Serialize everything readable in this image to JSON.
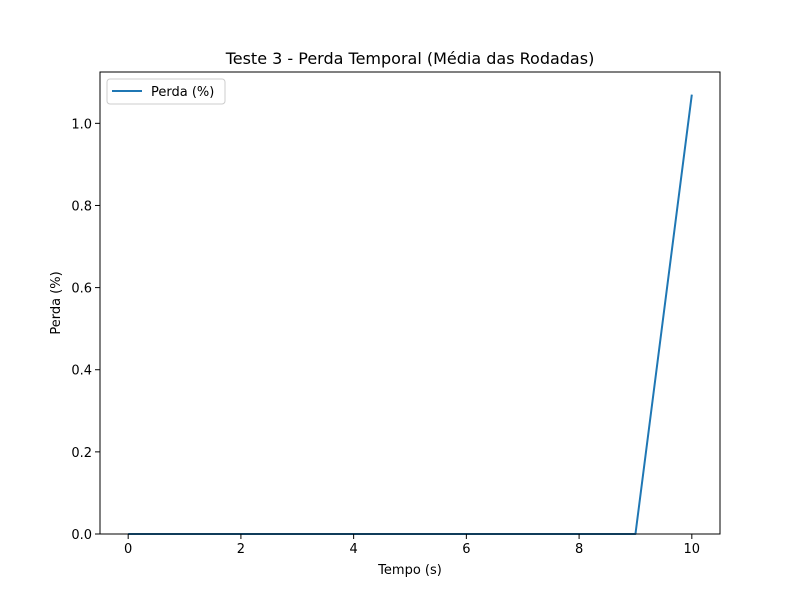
{
  "chart_data": {
    "type": "line",
    "title": "Teste 3 - Perda Temporal (Média das Rodadas)",
    "xlabel": "Tempo (s)",
    "ylabel": "Perda (%)",
    "xlim": [
      -0.5,
      10.5
    ],
    "ylim": [
      0.0,
      1.125
    ],
    "xticks": [
      0,
      2,
      4,
      6,
      8,
      10
    ],
    "xtick_labels": [
      "0",
      "2",
      "4",
      "6",
      "8",
      "10"
    ],
    "yticks": [
      0.0,
      0.2,
      0.4,
      0.6,
      0.8,
      1.0
    ],
    "ytick_labels": [
      "0.0",
      "0.2",
      "0.4",
      "0.6",
      "0.8",
      "1.0"
    ],
    "grid": false,
    "legend_position": "top-left",
    "series": [
      {
        "name": "Perda (%)",
        "color": "#1f77b4",
        "x": [
          0,
          1,
          2,
          3,
          4,
          5,
          6,
          7,
          8,
          9,
          10
        ],
        "y": [
          0,
          0,
          0,
          0,
          0,
          0,
          0,
          0,
          0,
          0,
          1.07
        ]
      }
    ]
  }
}
